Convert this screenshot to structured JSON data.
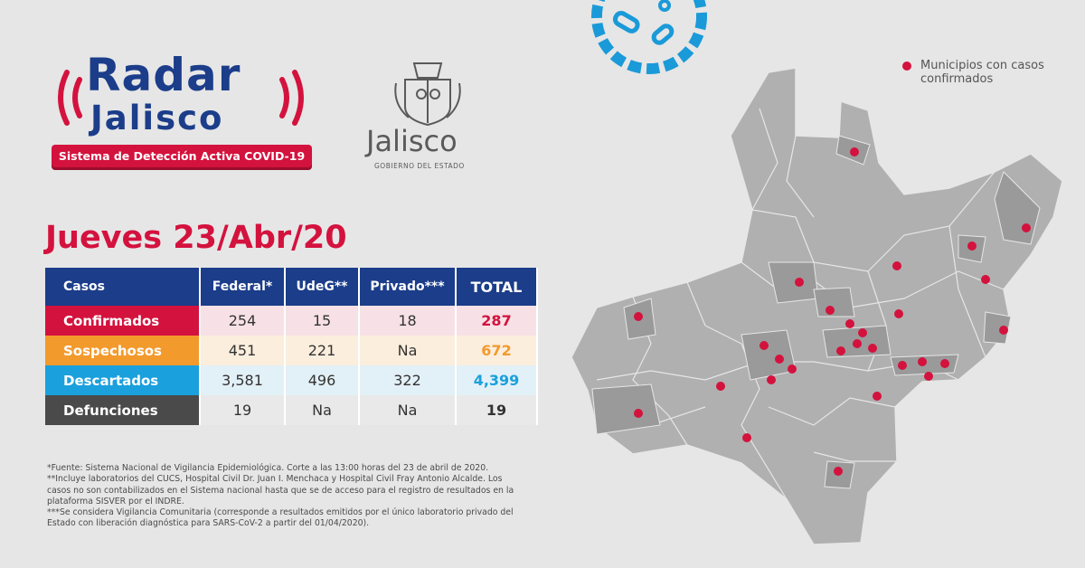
{
  "logo": {
    "title": "Radar",
    "subtitle": "Jalisco",
    "tagline": "Sistema de Detección Activa COVID-19"
  },
  "government": {
    "name": "Jalisco",
    "subtitle": "GOBIERNO DEL ESTADO"
  },
  "date": "Jueves 23/Abr/20",
  "table": {
    "header": [
      "Casos",
      "Federal*",
      "UdeG**",
      "Privado***",
      "TOTAL"
    ],
    "rows": [
      [
        "Confirmados",
        "254",
        "15",
        "18",
        "287"
      ],
      [
        "Sospechosos",
        "451",
        "221",
        "Na",
        "672"
      ],
      [
        "Descartados",
        "3,581",
        "496",
        "322",
        "4,399"
      ],
      [
        "Defunciones",
        "19",
        "Na",
        "Na",
        "19"
      ]
    ]
  },
  "footnotes": [
    "*Fuente: Sistema Nacional de Vigilancia Epidemiológica. Corte a las 13:00 horas del 23 de abril de 2020.",
    "**Incluye laboratorios del CUCS, Hospital Civil Dr. Juan I. Menchaca y Hospital Civil Fray Antonio Alcalde. Los casos no son contabilizados en el Sistema nacional hasta que se de acceso para el registro de resultados en la plataforma SISVER por el INDRE.",
    "***Se considera Vigilancia Comunitaria (corresponde a resultados emitidos por el único laboratorio privado del Estado con liberación diagnóstica para SARS-CoV-2 a partir del 01/04/2020)."
  ],
  "map_legend": "Municipios con casos confirmados"
}
